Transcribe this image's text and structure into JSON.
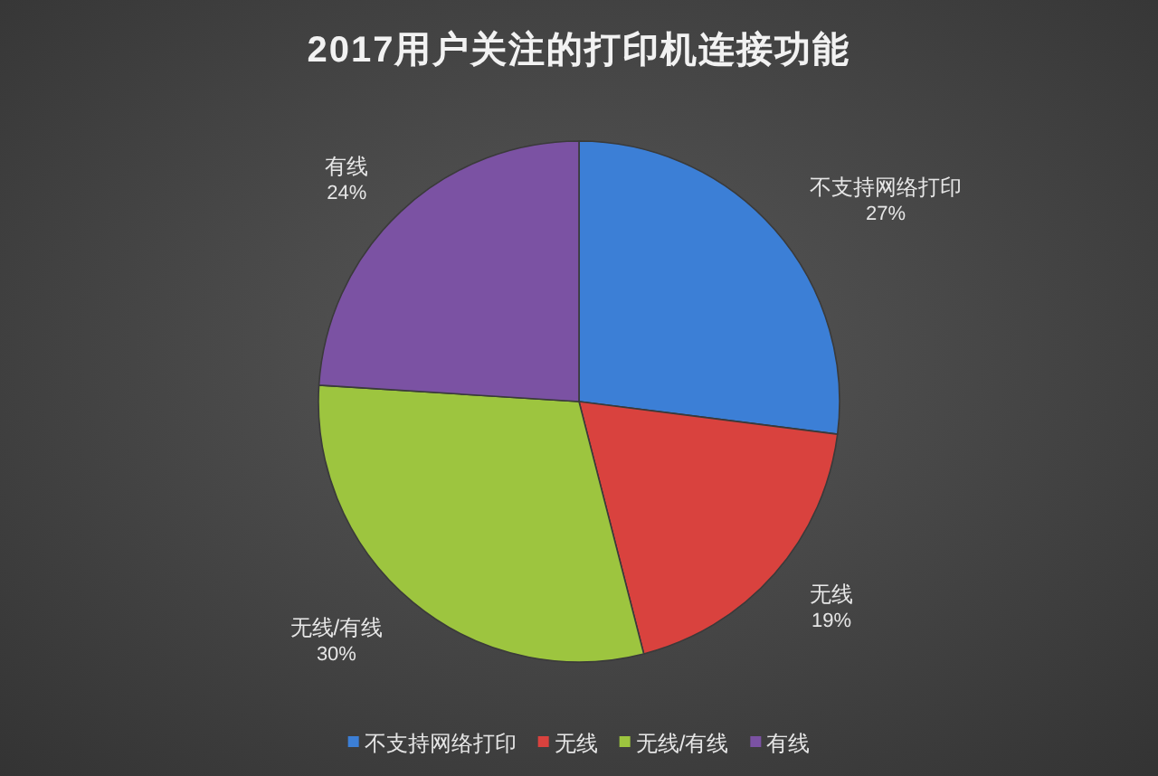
{
  "chart_data": {
    "type": "pie",
    "title": "2017用户关注的打印机连接功能",
    "categories": [
      "不支持网络打印",
      "无线",
      "无线/有线",
      "有线"
    ],
    "values": [
      27,
      19,
      30,
      24
    ],
    "colors": [
      "#3c7fd6",
      "#d9423e",
      "#9dc53f",
      "#7b52a3"
    ],
    "value_labels": [
      "27%",
      "19%",
      "30%",
      "24%"
    ],
    "legend": "bottom"
  }
}
